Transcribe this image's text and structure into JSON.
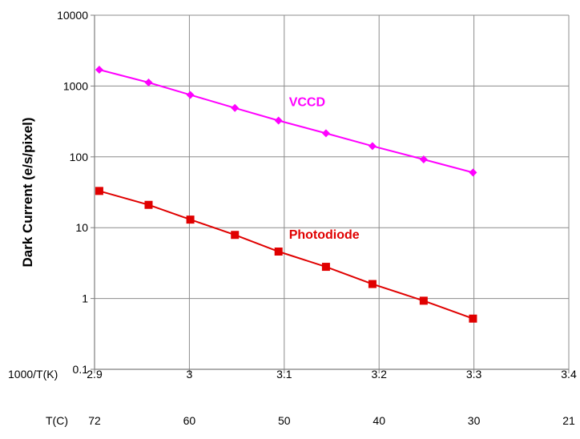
{
  "chart_data": {
    "type": "line",
    "ylabel": "Dark Current (e/s/pixel)",
    "yscale": "log",
    "ylim": [
      0.1,
      10000
    ],
    "yticks": [
      "10000",
      "1000",
      "100",
      "10",
      "1",
      "0.1"
    ],
    "xlim": [
      2.9,
      3.4
    ],
    "x_axis_label": "1000/T(K)",
    "xticks": [
      "2.9",
      "3",
      "3.1",
      "3.2",
      "3.3",
      "3.4"
    ],
    "secondary_x_label": "T(C)",
    "secondary_xticks": [
      "72",
      "60",
      "50",
      "40",
      "30",
      "21"
    ],
    "grid": true,
    "legend": "none",
    "series": [
      {
        "name": "VCCD",
        "color": "#ff00ff",
        "marker": "diamond",
        "x": [
          2.905,
          2.957,
          3.001,
          3.048,
          3.094,
          3.144,
          3.193,
          3.247,
          3.299
        ],
        "y": [
          1700,
          1120,
          750,
          490,
          325,
          215,
          142,
          92,
          60
        ]
      },
      {
        "name": "Photodiode",
        "color": "#e00000",
        "marker": "square",
        "x": [
          2.905,
          2.957,
          3.001,
          3.048,
          3.094,
          3.144,
          3.193,
          3.247,
          3.299
        ],
        "y": [
          33,
          21,
          13,
          7.9,
          4.6,
          2.8,
          1.6,
          0.93,
          0.52
        ]
      }
    ]
  }
}
